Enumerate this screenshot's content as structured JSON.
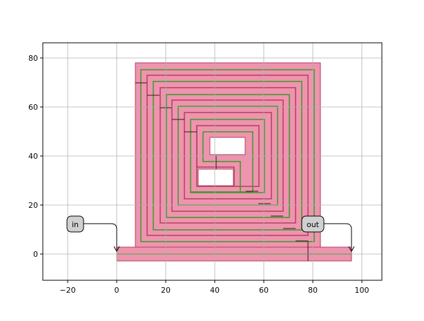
{
  "chart_data": {
    "type": "layout-plot",
    "xlim": [
      -30,
      108
    ],
    "ylim": [
      -11,
      86
    ],
    "grid": true,
    "x_ticks": [
      -20,
      0,
      20,
      40,
      60,
      80,
      100
    ],
    "y_ticks": [
      0,
      20,
      40,
      60,
      80
    ],
    "ports": [
      {
        "label": "in",
        "x": 0,
        "y": 0
      },
      {
        "label": "out",
        "x": 96,
        "y": 0
      }
    ],
    "colors": {
      "metal_fill": "#ee94ae",
      "metal_edge": "#b0405f",
      "track_green": "#3a9a2a",
      "grid": "#b0b0b0",
      "label_box": "#d0d0d0"
    }
  }
}
